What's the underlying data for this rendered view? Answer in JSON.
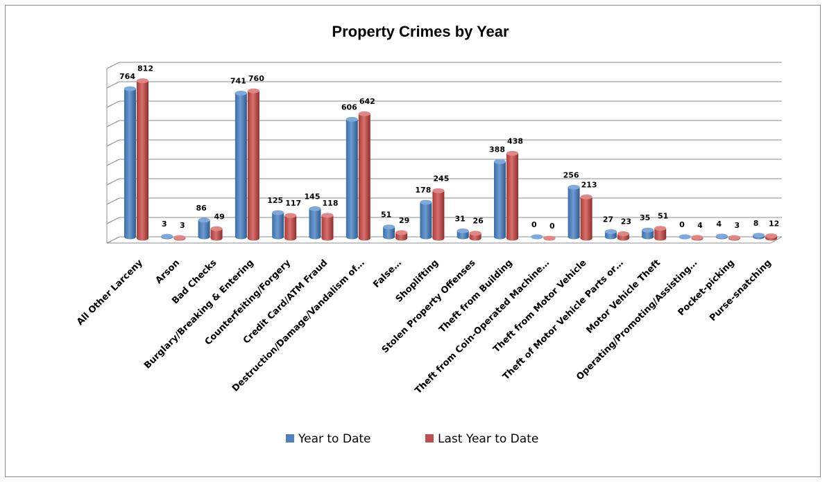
{
  "chart_data": {
    "type": "bar",
    "title": "Property Crimes by Year",
    "xlabel": "",
    "ylabel": "",
    "ylim": [
      0,
      900
    ],
    "grid": true,
    "legend_position": "bottom",
    "categories": [
      "All Other Larceny",
      "Arson",
      "Bad Checks",
      "Burglary/Breaking & Entering",
      "Counterfeiting/Forgery",
      "Credit Card/ATM Fraud",
      "Destruction/Damage/Vandalism of…",
      "False…",
      "Shoplifting",
      "Stolen Property Offenses",
      "Theft from Building",
      "Theft from Coin-Operated Machine…",
      "Theft from Motor Vehicle",
      "Theft of Motor Vehicle Parts or…",
      "Motor Vehicle Theft",
      "Operating/Promoting/Assisting…",
      "Pocket-picking",
      "Purse-snatching"
    ],
    "series": [
      {
        "name": "Year to Date",
        "color": "#4f81bd",
        "values": [
          764,
          3,
          86,
          741,
          125,
          145,
          606,
          51,
          178,
          31,
          388,
          0,
          256,
          27,
          35,
          0,
          4,
          8
        ]
      },
      {
        "name": "Last Year to Date",
        "color": "#c0504d",
        "values": [
          812,
          3,
          49,
          760,
          117,
          118,
          642,
          29,
          245,
          26,
          438,
          0,
          213,
          23,
          51,
          4,
          3,
          12
        ]
      }
    ]
  }
}
